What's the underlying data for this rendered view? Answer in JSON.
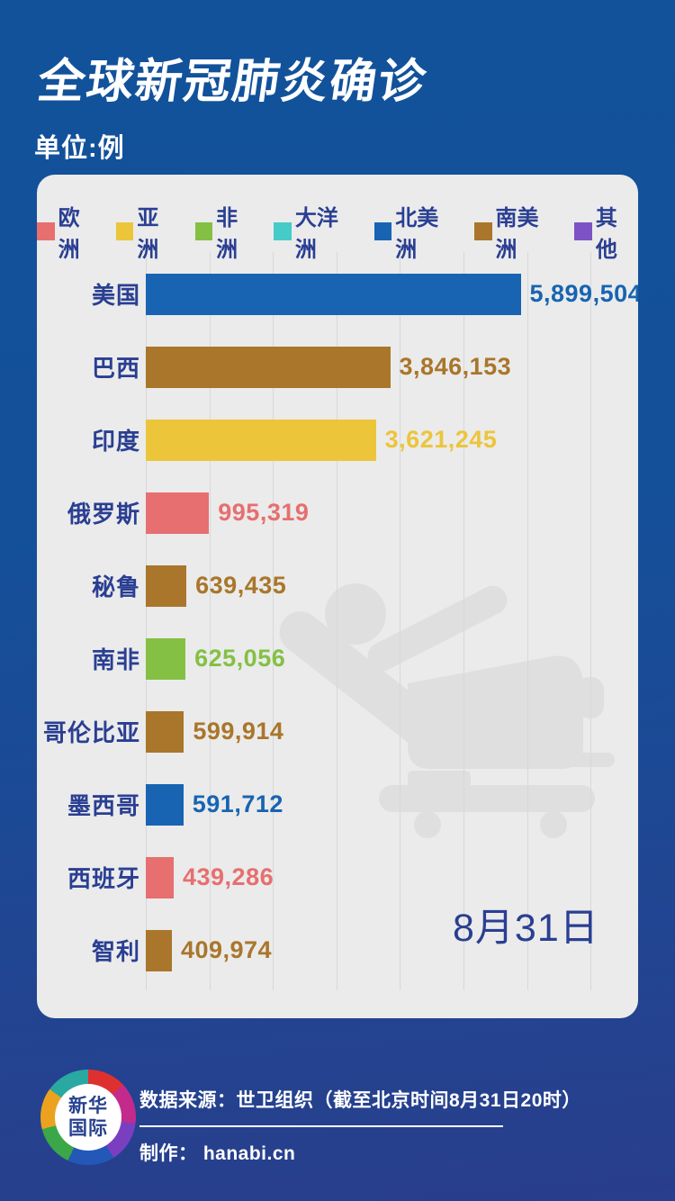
{
  "header": {
    "title": "全球新冠肺炎确诊",
    "subtitle": "单位:例"
  },
  "legend": [
    {
      "label": "欧洲",
      "color": "#e76f6f"
    },
    {
      "label": "亚洲",
      "color": "#ecc53a"
    },
    {
      "label": "非洲",
      "color": "#84c044"
    },
    {
      "label": "大洋洲",
      "color": "#45cbc8"
    },
    {
      "label": "北美洲",
      "color": "#1864b2"
    },
    {
      "label": "南美洲",
      "color": "#a9762b"
    },
    {
      "label": "其他",
      "color": "#7d52c4"
    }
  ],
  "chart_data": {
    "type": "bar",
    "orientation": "horizontal",
    "title": "全球新冠肺炎确诊",
    "unit_label": "单位:例",
    "date_label": "8月31日",
    "xlim": [
      0,
      7800000
    ],
    "gridline_step": 1000000,
    "gridlines_shown": 8,
    "legend_position": "top",
    "categories": [
      "美国",
      "巴西",
      "印度",
      "俄罗斯",
      "秘鲁",
      "南非",
      "哥伦比亚",
      "墨西哥",
      "西班牙",
      "智利"
    ],
    "values": [
      5899504,
      3846153,
      3621245,
      995319,
      639435,
      625056,
      599914,
      591712,
      439286,
      409974
    ],
    "value_labels": [
      "5,899,504",
      "3,846,153",
      "3,621,245",
      "995,319",
      "639,435",
      "625,056",
      "599,914",
      "591,712",
      "439,286",
      "409,974"
    ],
    "continents": [
      "北美洲",
      "南美洲",
      "亚洲",
      "欧洲",
      "南美洲",
      "非洲",
      "南美洲",
      "北美洲",
      "欧洲",
      "南美洲"
    ],
    "continent_colors": {
      "欧洲": "#e76f6f",
      "亚洲": "#ecc53a",
      "非洲": "#84c044",
      "大洋洲": "#45cbc8",
      "北美洲": "#1864b2",
      "南美洲": "#a9762b",
      "其他": "#7d52c4"
    }
  },
  "watermark": {
    "name": "hospital-bed-patient-icon",
    "color": "#dfdfdf"
  },
  "footer": {
    "logo_line1": "新华",
    "logo_line2": "国际",
    "source": "数据来源：世卫组织（截至北京时间8月31日20时）",
    "credit": "制作： hanabi.cn"
  },
  "colors": {
    "background_top": "#12529b",
    "background_bottom": "#293e8c",
    "card": "#ebebeb",
    "gridline": "#d8d8d8",
    "text_navy": "#2a3f92",
    "text_white": "#ffffff"
  }
}
